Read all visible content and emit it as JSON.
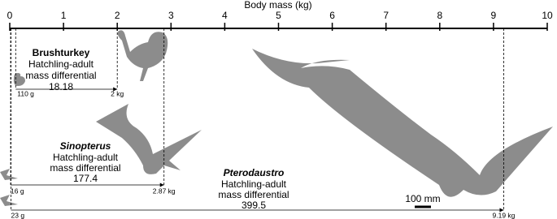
{
  "axis": {
    "label": "Body mass (kg)",
    "xlim": [
      0,
      10
    ],
    "xticks": [
      0,
      1,
      2,
      3,
      4,
      5,
      6,
      7,
      8,
      9,
      10
    ]
  },
  "groups": [
    {
      "name": "Brushturkey",
      "description_1": "Hatchling-adult",
      "description_2": "mass differential",
      "differential": "18.18",
      "hatchling": {
        "value": 0.11,
        "label": "110 g"
      },
      "adult": {
        "value": 2,
        "label": "2 kg"
      }
    },
    {
      "name": "Sinopterus",
      "description_1": "Hatchling-adult",
      "description_2": "mass differential",
      "differential": "177.4",
      "hatchling": {
        "value": 0.016,
        "label": "16 g"
      },
      "adult": {
        "value": 2.87,
        "label": "2.87 kg"
      }
    },
    {
      "name": "Pterodaustro",
      "description_1": "Hatchling-adult",
      "description_2": "mass differential",
      "differential": "399.5",
      "hatchling": {
        "value": 0.023,
        "label": "23 g"
      },
      "adult": {
        "value": 9.19,
        "label": "9.19 kg"
      }
    }
  ],
  "scale_bar": "100 mm"
}
